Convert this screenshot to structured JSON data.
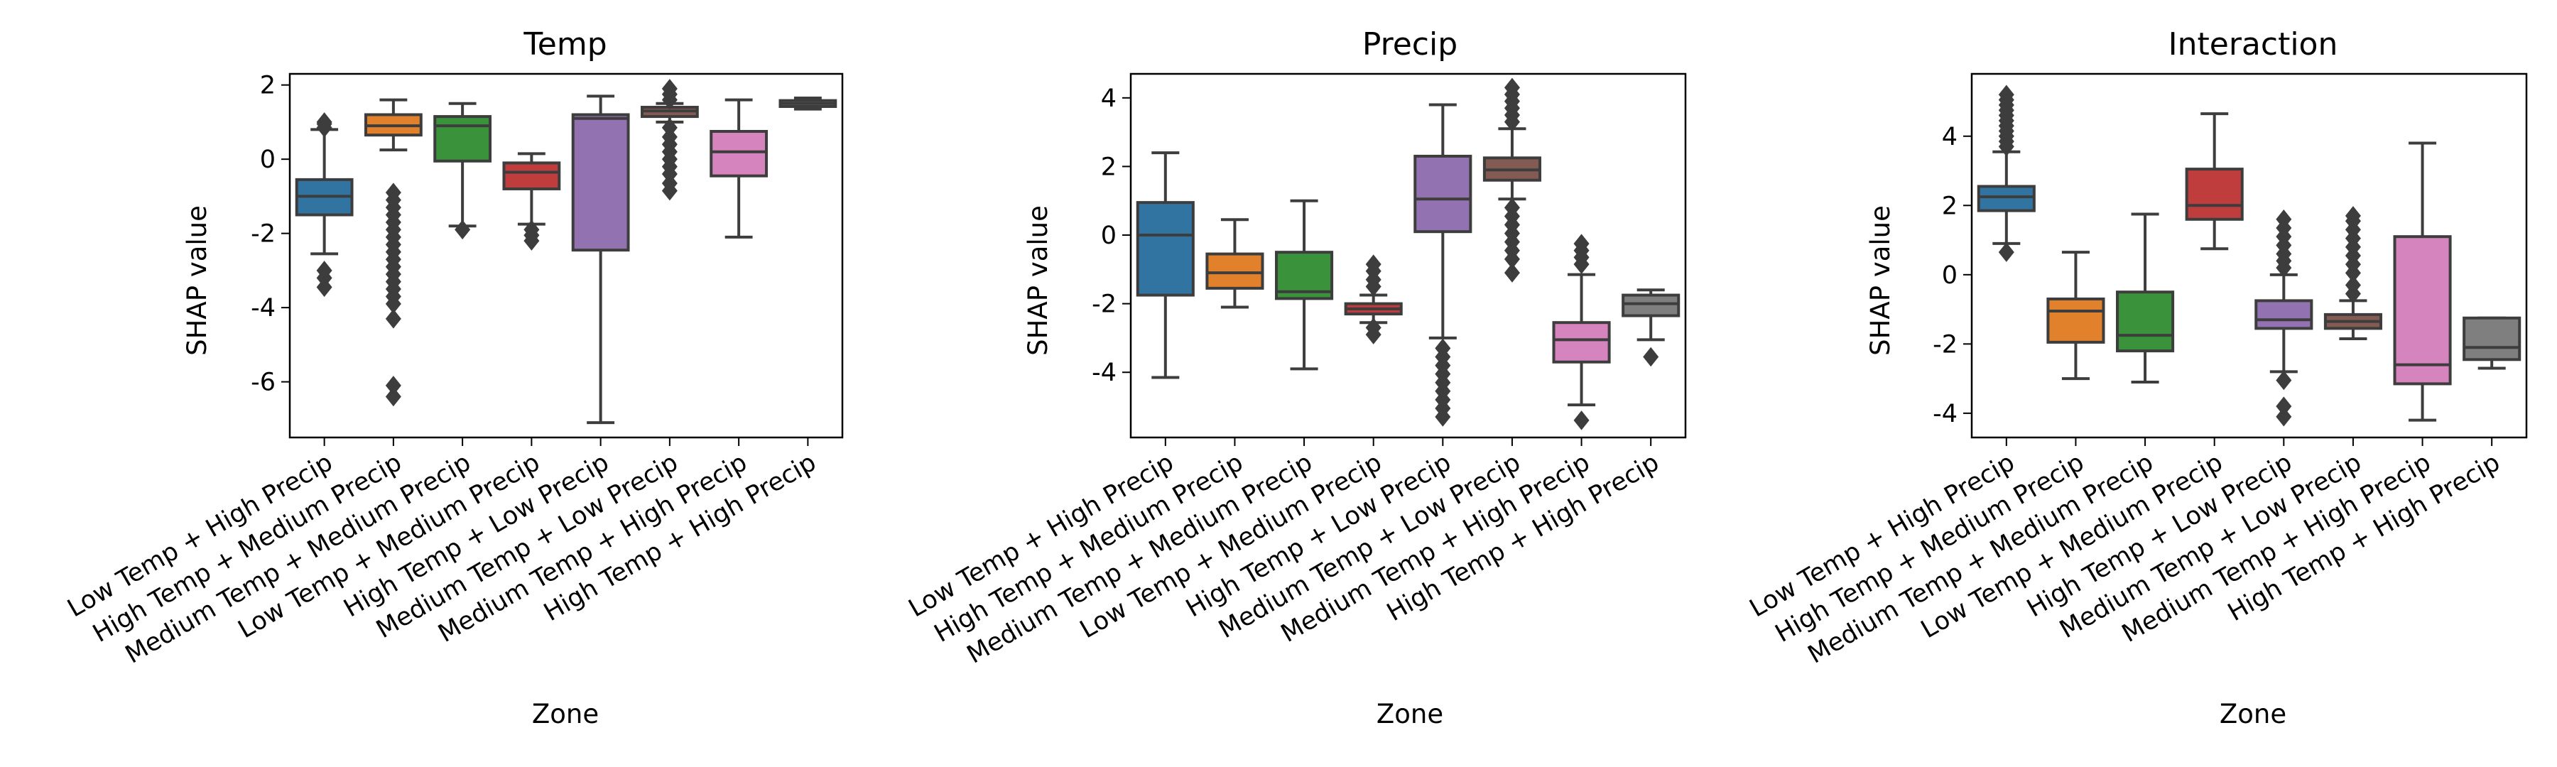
{
  "chart_data": [
    {
      "type": "box",
      "title": "Temp",
      "xlabel": "Zone",
      "ylabel": "SHAP value",
      "ylim": [
        -7.5,
        2.3
      ],
      "yticks": [
        2,
        0,
        -2,
        -4,
        -6
      ],
      "categories": [
        "Low Temp + High Precip",
        "High Temp + Medium Precip",
        "Medium Temp + Medium Precip",
        "Low Temp + Medium Precip",
        "High Temp + Low Precip",
        "Medium Temp + Low Precip",
        "Medium Temp + High Precip",
        "High Temp + High Precip"
      ],
      "colors": [
        "#3274a1",
        "#e1812c",
        "#3a923a",
        "#c03d3e",
        "#9372b2",
        "#845b53",
        "#d684bd",
        "#7f7f7f"
      ],
      "boxes": [
        {
          "q1": -1.5,
          "median": -1.0,
          "q3": -0.55,
          "whisker_low": -2.55,
          "whisker_high": 0.8,
          "fliers": [
            -3.0,
            -3.2,
            -3.45,
            0.85,
            0.95,
            1.0
          ]
        },
        {
          "q1": 0.65,
          "median": 0.9,
          "q3": 1.2,
          "whisker_low": 0.25,
          "whisker_high": 1.6,
          "fliers": [
            -0.9,
            -1.1,
            -1.3,
            -1.5,
            -1.7,
            -1.9,
            -2.1,
            -2.3,
            -2.5,
            -2.7,
            -2.9,
            -3.1,
            -3.3,
            -3.5,
            -3.7,
            -3.9,
            -4.3,
            -6.1,
            -6.4
          ]
        },
        {
          "q1": -0.05,
          "median": 0.9,
          "q3": 1.15,
          "whisker_low": -1.8,
          "whisker_high": 1.5,
          "fliers": [
            -1.9
          ]
        },
        {
          "q1": -0.8,
          "median": -0.35,
          "q3": -0.1,
          "whisker_low": -1.75,
          "whisker_high": 0.15,
          "fliers": [
            -1.9,
            -2.05,
            -2.2
          ]
        },
        {
          "q1": -2.45,
          "median": 1.1,
          "q3": 1.2,
          "whisker_low": -7.1,
          "whisker_high": 1.7,
          "fliers": []
        },
        {
          "q1": 1.15,
          "median": 1.3,
          "q3": 1.4,
          "whisker_low": 1.0,
          "whisker_high": 1.5,
          "fliers": [
            0.85,
            0.6,
            0.4,
            0.2,
            0.0,
            -0.2,
            -0.4,
            -0.65,
            -0.85,
            1.6,
            1.75,
            1.9
          ]
        },
        {
          "q1": -0.45,
          "median": 0.2,
          "q3": 0.75,
          "whisker_low": -2.1,
          "whisker_high": 1.6,
          "fliers": []
        },
        {
          "q1": 1.42,
          "median": 1.5,
          "q3": 1.58,
          "whisker_low": 1.35,
          "whisker_high": 1.65,
          "fliers": []
        }
      ]
    },
    {
      "type": "box",
      "title": "Precip",
      "xlabel": "Zone",
      "ylabel": "SHAP value",
      "ylim": [
        -5.9,
        4.7
      ],
      "yticks": [
        4,
        2,
        0,
        -2,
        -4
      ],
      "categories": [
        "Low Temp + High Precip",
        "High Temp + Medium Precip",
        "Medium Temp + Medium Precip",
        "Low Temp + Medium Precip",
        "High Temp + Low Precip",
        "Medium Temp + Low Precip",
        "Medium Temp + High Precip",
        "High Temp + High Precip"
      ],
      "colors": [
        "#3274a1",
        "#e1812c",
        "#3a923a",
        "#c03d3e",
        "#9372b2",
        "#845b53",
        "#d684bd",
        "#7f7f7f"
      ],
      "boxes": [
        {
          "q1": -1.75,
          "median": 0.0,
          "q3": 0.95,
          "whisker_low": -4.15,
          "whisker_high": 2.4,
          "fliers": []
        },
        {
          "q1": -1.55,
          "median": -1.1,
          "q3": -0.55,
          "whisker_low": -2.1,
          "whisker_high": 0.45,
          "fliers": []
        },
        {
          "q1": -1.85,
          "median": -1.65,
          "q3": -0.5,
          "whisker_low": -3.9,
          "whisker_high": 1.0,
          "fliers": []
        },
        {
          "q1": -2.3,
          "median": -2.15,
          "q3": -2.0,
          "whisker_low": -2.55,
          "whisker_high": -1.75,
          "fliers": [
            -0.85,
            -1.05,
            -1.3,
            -1.5,
            -2.7,
            -2.9
          ]
        },
        {
          "q1": 0.1,
          "median": 1.05,
          "q3": 2.3,
          "whisker_low": -3.0,
          "whisker_high": 3.8,
          "fliers": [
            -3.3,
            -3.55,
            -3.8,
            -4.05,
            -4.3,
            -4.55,
            -4.8,
            -5.05,
            -5.3
          ]
        },
        {
          "q1": 1.6,
          "median": 1.9,
          "q3": 2.25,
          "whisker_low": 1.05,
          "whisker_high": 3.1,
          "fliers": [
            3.3,
            3.5,
            3.7,
            3.9,
            4.1,
            4.3,
            0.8,
            0.55,
            0.3,
            0.05,
            -0.2,
            -0.45,
            -0.7,
            -1.1
          ]
        },
        {
          "q1": -3.7,
          "median": -3.05,
          "q3": -2.55,
          "whisker_low": -4.95,
          "whisker_high": -1.15,
          "fliers": [
            -0.25,
            -0.45,
            -0.65,
            -0.85,
            -5.4
          ]
        },
        {
          "q1": -2.35,
          "median": -2.0,
          "q3": -1.75,
          "whisker_low": -3.05,
          "whisker_high": -1.6,
          "fliers": [
            -3.55
          ]
        }
      ]
    },
    {
      "type": "box",
      "title": "Interaction",
      "xlabel": "Zone",
      "ylabel": "SHAP value",
      "ylim": [
        -4.7,
        5.8
      ],
      "yticks": [
        4,
        2,
        0,
        -2,
        -4
      ],
      "categories": [
        "Low Temp + High Precip",
        "High Temp + Medium Precip",
        "Medium Temp + Medium Precip",
        "Low Temp + Medium Precip",
        "High Temp + Low Precip",
        "Medium Temp + Low Precip",
        "Medium Temp + High Precip",
        "High Temp + High Precip"
      ],
      "colors": [
        "#3274a1",
        "#e1812c",
        "#3a923a",
        "#c03d3e",
        "#9372b2",
        "#845b53",
        "#d684bd",
        "#7f7f7f"
      ],
      "boxes": [
        {
          "q1": 1.85,
          "median": 2.25,
          "q3": 2.55,
          "whisker_low": 0.9,
          "whisker_high": 3.55,
          "fliers": [
            3.7,
            3.85,
            4.0,
            4.15,
            4.3,
            4.45,
            4.6,
            4.75,
            4.9,
            5.05,
            5.2,
            0.65
          ]
        },
        {
          "q1": -1.95,
          "median": -1.05,
          "q3": -0.7,
          "whisker_low": -3.0,
          "whisker_high": 0.65,
          "fliers": []
        },
        {
          "q1": -2.2,
          "median": -1.75,
          "q3": -0.5,
          "whisker_low": -3.1,
          "whisker_high": 1.75,
          "fliers": []
        },
        {
          "q1": 1.6,
          "median": 2.0,
          "q3": 3.05,
          "whisker_low": 0.75,
          "whisker_high": 4.65,
          "fliers": []
        },
        {
          "q1": -1.55,
          "median": -1.3,
          "q3": -0.75,
          "whisker_low": -2.8,
          "whisker_high": 0.0,
          "fliers": [
            0.2,
            0.4,
            0.6,
            0.85,
            1.1,
            1.35,
            1.6,
            -3.05,
            -3.8,
            -4.1
          ]
        },
        {
          "q1": -1.55,
          "median": -1.35,
          "q3": -1.15,
          "whisker_low": -1.85,
          "whisker_high": -0.75,
          "fliers": [
            -0.55,
            -0.3,
            0.05,
            0.3,
            0.55,
            0.8,
            1.05,
            1.3,
            1.55,
            1.7
          ]
        },
        {
          "q1": -3.15,
          "median": -2.6,
          "q3": 1.1,
          "whisker_low": -4.2,
          "whisker_high": 3.8,
          "fliers": []
        },
        {
          "q1": -2.45,
          "median": -2.1,
          "q3": -1.25,
          "whisker_low": -2.7,
          "whisker_high": -1.25,
          "fliers": []
        }
      ]
    }
  ]
}
